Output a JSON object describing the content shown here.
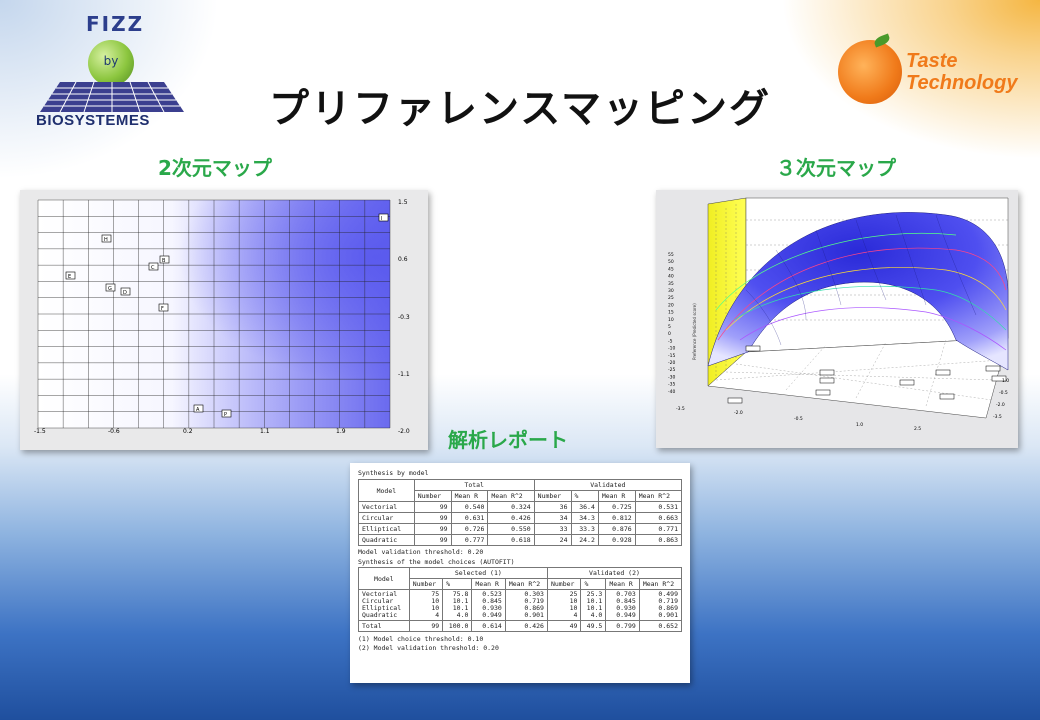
{
  "title": "プリファレンスマッピング",
  "logos": {
    "fizz_top": "FIZZ",
    "fizz_by": "by",
    "fizz_bottom": "BIOSYSTEMES",
    "taste_line1": "Taste",
    "taste_line2": "Technology"
  },
  "sections": {
    "map2d": "2次元マップ",
    "map3d": "３次元マップ",
    "report": "解析レポート"
  },
  "map2d": {
    "x_ticks": [
      "-1.5",
      "-0.6",
      "0.2",
      "1.1",
      "1.9"
    ],
    "y_ticks": [
      "1.5",
      "0.6",
      "-0.3",
      "-1.1",
      "-2.0"
    ],
    "products": [
      "H",
      "B",
      "C",
      "E",
      "G",
      "D",
      "F",
      "A",
      "P",
      "I",
      "N"
    ]
  },
  "map3d": {
    "y_ticks": [
      "55",
      "50",
      "45",
      "40",
      "35",
      "30",
      "25",
      "20",
      "15",
      "10",
      "5",
      "0",
      "-5",
      "-10",
      "-15",
      "-20",
      "-25",
      "-30",
      "-35",
      "-40"
    ],
    "x_ticks": [
      "-3.5",
      "-2.0",
      "-0.5",
      "1.0",
      "2.5"
    ],
    "z_ticks": [
      "1.0",
      "-0.5",
      "-2.0",
      "-3.5"
    ],
    "ylabel": "Preference (Predicted score)"
  },
  "report": {
    "title1": "Synthesis by model",
    "head_model": "Model",
    "head_total": "Total",
    "head_validated": "Validated",
    "cols1": [
      "Number",
      "Mean R",
      "Mean R^2",
      "Number",
      "%",
      "Mean R",
      "Mean R^2"
    ],
    "rows1": [
      {
        "model": "Vectorial",
        "vals": [
          "99",
          "0.540",
          "0.324",
          "36",
          "36.4",
          "0.725",
          "0.531"
        ]
      },
      {
        "model": "Circular",
        "vals": [
          "99",
          "0.631",
          "0.426",
          "34",
          "34.3",
          "0.812",
          "0.663"
        ]
      },
      {
        "model": "Elliptical",
        "vals": [
          "99",
          "0.726",
          "0.550",
          "33",
          "33.3",
          "0.876",
          "0.771"
        ]
      },
      {
        "model": "Quadratic",
        "vals": [
          "99",
          "0.777",
          "0.618",
          "24",
          "24.2",
          "0.928",
          "0.863"
        ]
      }
    ],
    "threshold1": "Model validation threshold: 0.20",
    "title2": "Synthesis of the model choices (AUTOFIT)",
    "head_selected": "Selected (1)",
    "head_validated2": "Validated (2)",
    "cols2": [
      "Number",
      "%",
      "Mean R",
      "Mean R^2",
      "Number",
      "%",
      "Mean R",
      "Mean R^2"
    ],
    "rows2_models": "Vectorial\nCircular\nElliptical\nQuadratic",
    "rows2_cols": [
      "75\n10\n10\n4",
      "75.8\n10.1\n10.1\n4.0",
      "0.523\n0.845\n0.930\n0.949",
      "0.303\n0.719\n0.869\n0.901",
      "25\n10\n10\n4",
      "25.3\n10.1\n10.1\n4.0",
      "0.703\n0.845\n0.930\n0.949",
      "0.499\n0.719\n0.869\n0.901"
    ],
    "total_label": "Total",
    "total_vals": [
      "99",
      "100.0",
      "0.614",
      "0.426",
      "49",
      "49.5",
      "0.799",
      "0.652"
    ],
    "footnote1": "(1) Model choice threshold: 0.10",
    "footnote2": "(2) Model validation threshold: 0.20"
  }
}
